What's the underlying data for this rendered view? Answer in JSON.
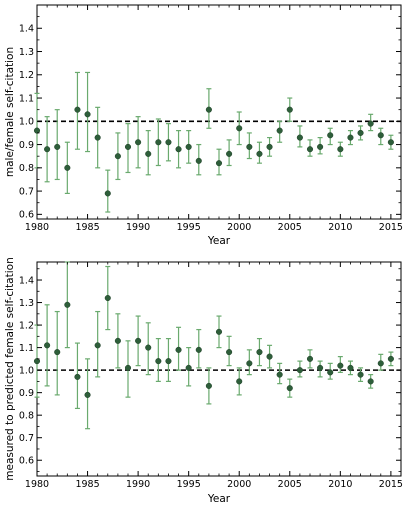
{
  "chart_data": [
    {
      "type": "scatter",
      "xlabel": "Year",
      "ylabel": "male/female self-citation",
      "xlim": [
        1980,
        2016
      ],
      "ylim": [
        0.58,
        1.5
      ],
      "xticks": [
        1980,
        1985,
        1990,
        1995,
        2000,
        2005,
        2010,
        2015
      ],
      "yticks": [
        0.6,
        0.7,
        0.8,
        0.9,
        1.0,
        1.1,
        1.2,
        1.3,
        1.4
      ],
      "xtick_labels": [
        "1980",
        "1985",
        "1990",
        "1995",
        "2000",
        "2005",
        "2010",
        "2015"
      ],
      "ytick_labels": [
        "0.6",
        "0.7",
        "0.8",
        "0.9",
        "1.0",
        "1.1",
        "1.2",
        "1.3",
        "1.4"
      ],
      "reference_line": 1.0,
      "grid": false,
      "point_color": "#2e5e3a",
      "errorbar_color": "#6aaa6e",
      "points": [
        {
          "x": 1980,
          "y": 0.96,
          "lo": 0.8,
          "hi": 1.12
        },
        {
          "x": 1981,
          "y": 0.88,
          "lo": 0.74,
          "hi": 1.02
        },
        {
          "x": 1982,
          "y": 0.89,
          "lo": 0.75,
          "hi": 1.05
        },
        {
          "x": 1983,
          "y": 0.8,
          "lo": 0.69,
          "hi": 0.91
        },
        {
          "x": 1984,
          "y": 1.05,
          "lo": 0.88,
          "hi": 1.21
        },
        {
          "x": 1985,
          "y": 1.03,
          "lo": 0.87,
          "hi": 1.21
        },
        {
          "x": 1986,
          "y": 0.93,
          "lo": 0.8,
          "hi": 1.06
        },
        {
          "x": 1987,
          "y": 0.69,
          "lo": 0.61,
          "hi": 0.79
        },
        {
          "x": 1988,
          "y": 0.85,
          "lo": 0.75,
          "hi": 0.95
        },
        {
          "x": 1989,
          "y": 0.89,
          "lo": 0.78,
          "hi": 0.99
        },
        {
          "x": 1990,
          "y": 0.91,
          "lo": 0.8,
          "hi": 1.02
        },
        {
          "x": 1991,
          "y": 0.86,
          "lo": 0.77,
          "hi": 0.96
        },
        {
          "x": 1992,
          "y": 0.91,
          "lo": 0.81,
          "hi": 1.01
        },
        {
          "x": 1993,
          "y": 0.91,
          "lo": 0.83,
          "hi": 0.99
        },
        {
          "x": 1994,
          "y": 0.88,
          "lo": 0.8,
          "hi": 0.96
        },
        {
          "x": 1995,
          "y": 0.89,
          "lo": 0.82,
          "hi": 0.96
        },
        {
          "x": 1996,
          "y": 0.83,
          "lo": 0.77,
          "hi": 0.9
        },
        {
          "x": 1997,
          "y": 1.05,
          "lo": 0.97,
          "hi": 1.14
        },
        {
          "x": 1998,
          "y": 0.82,
          "lo": 0.77,
          "hi": 0.88
        },
        {
          "x": 1999,
          "y": 0.86,
          "lo": 0.81,
          "hi": 0.92
        },
        {
          "x": 2000,
          "y": 0.97,
          "lo": 0.9,
          "hi": 1.04
        },
        {
          "x": 2001,
          "y": 0.89,
          "lo": 0.84,
          "hi": 0.95
        },
        {
          "x": 2002,
          "y": 0.86,
          "lo": 0.82,
          "hi": 0.91
        },
        {
          "x": 2003,
          "y": 0.89,
          "lo": 0.85,
          "hi": 0.93
        },
        {
          "x": 2004,
          "y": 0.96,
          "lo": 0.91,
          "hi": 1.0
        },
        {
          "x": 2005,
          "y": 1.05,
          "lo": 1.0,
          "hi": 1.1
        },
        {
          "x": 2006,
          "y": 0.93,
          "lo": 0.89,
          "hi": 0.98
        },
        {
          "x": 2007,
          "y": 0.88,
          "lo": 0.85,
          "hi": 0.92
        },
        {
          "x": 2008,
          "y": 0.89,
          "lo": 0.86,
          "hi": 0.93
        },
        {
          "x": 2009,
          "y": 0.94,
          "lo": 0.9,
          "hi": 0.97
        },
        {
          "x": 2010,
          "y": 0.88,
          "lo": 0.85,
          "hi": 0.91
        },
        {
          "x": 2011,
          "y": 0.93,
          "lo": 0.9,
          "hi": 0.96
        },
        {
          "x": 2012,
          "y": 0.95,
          "lo": 0.92,
          "hi": 0.98
        },
        {
          "x": 2013,
          "y": 0.99,
          "lo": 0.96,
          "hi": 1.03
        },
        {
          "x": 2014,
          "y": 0.94,
          "lo": 0.9,
          "hi": 0.97
        },
        {
          "x": 2015,
          "y": 0.91,
          "lo": 0.88,
          "hi": 0.94
        }
      ]
    },
    {
      "type": "scatter",
      "xlabel": "Year",
      "ylabel": "measured to predicted female self-citation",
      "xlim": [
        1980,
        2016
      ],
      "ylim": [
        0.53,
        1.48
      ],
      "xticks": [
        1980,
        1985,
        1990,
        1995,
        2000,
        2005,
        2010,
        2015
      ],
      "yticks": [
        0.6,
        0.7,
        0.8,
        0.9,
        1.0,
        1.1,
        1.2,
        1.3,
        1.4
      ],
      "xtick_labels": [
        "1980",
        "1985",
        "1990",
        "1995",
        "2000",
        "2005",
        "2010",
        "2015"
      ],
      "ytick_labels": [
        "0.6",
        "0.7",
        "0.8",
        "0.9",
        "1.0",
        "1.1",
        "1.2",
        "1.3",
        "1.4"
      ],
      "reference_line": 1.0,
      "grid": false,
      "point_color": "#2e5e3a",
      "errorbar_color": "#6aaa6e",
      "points": [
        {
          "x": 1980,
          "y": 1.04,
          "lo": 0.88,
          "hi": 1.2
        },
        {
          "x": 1981,
          "y": 1.11,
          "lo": 0.93,
          "hi": 1.29
        },
        {
          "x": 1982,
          "y": 1.08,
          "lo": 0.89,
          "hi": 1.26
        },
        {
          "x": 1983,
          "y": 1.29,
          "lo": 1.1,
          "hi": 1.48
        },
        {
          "x": 1984,
          "y": 0.97,
          "lo": 0.83,
          "hi": 1.12
        },
        {
          "x": 1985,
          "y": 0.89,
          "lo": 0.74,
          "hi": 1.05
        },
        {
          "x": 1986,
          "y": 1.11,
          "lo": 0.97,
          "hi": 1.26
        },
        {
          "x": 1987,
          "y": 1.32,
          "lo": 1.18,
          "hi": 1.46
        },
        {
          "x": 1988,
          "y": 1.13,
          "lo": 1.01,
          "hi": 1.25
        },
        {
          "x": 1989,
          "y": 1.01,
          "lo": 0.88,
          "hi": 1.13
        },
        {
          "x": 1990,
          "y": 1.13,
          "lo": 1.02,
          "hi": 1.24
        },
        {
          "x": 1991,
          "y": 1.1,
          "lo": 0.98,
          "hi": 1.21
        },
        {
          "x": 1992,
          "y": 1.04,
          "lo": 0.95,
          "hi": 1.14
        },
        {
          "x": 1993,
          "y": 1.04,
          "lo": 0.95,
          "hi": 1.14
        },
        {
          "x": 1994,
          "y": 1.09,
          "lo": 1.0,
          "hi": 1.19
        },
        {
          "x": 1995,
          "y": 1.01,
          "lo": 0.93,
          "hi": 1.1
        },
        {
          "x": 1996,
          "y": 1.09,
          "lo": 1.01,
          "hi": 1.18
        },
        {
          "x": 1997,
          "y": 0.93,
          "lo": 0.85,
          "hi": 1.01
        },
        {
          "x": 1998,
          "y": 1.17,
          "lo": 1.1,
          "hi": 1.24
        },
        {
          "x": 1999,
          "y": 1.08,
          "lo": 1.02,
          "hi": 1.15
        },
        {
          "x": 2000,
          "y": 0.95,
          "lo": 0.89,
          "hi": 1.01
        },
        {
          "x": 2001,
          "y": 1.03,
          "lo": 0.98,
          "hi": 1.09
        },
        {
          "x": 2002,
          "y": 1.08,
          "lo": 1.02,
          "hi": 1.14
        },
        {
          "x": 2003,
          "y": 1.06,
          "lo": 1.01,
          "hi": 1.11
        },
        {
          "x": 2004,
          "y": 0.98,
          "lo": 0.94,
          "hi": 1.03
        },
        {
          "x": 2005,
          "y": 0.92,
          "lo": 0.88,
          "hi": 0.96
        },
        {
          "x": 2006,
          "y": 1.0,
          "lo": 0.97,
          "hi": 1.04
        },
        {
          "x": 2007,
          "y": 1.05,
          "lo": 1.01,
          "hi": 1.09
        },
        {
          "x": 2008,
          "y": 1.01,
          "lo": 0.97,
          "hi": 1.04
        },
        {
          "x": 2009,
          "y": 0.99,
          "lo": 0.96,
          "hi": 1.03
        },
        {
          "x": 2010,
          "y": 1.02,
          "lo": 0.99,
          "hi": 1.06
        },
        {
          "x": 2011,
          "y": 1.01,
          "lo": 0.98,
          "hi": 1.04
        },
        {
          "x": 2012,
          "y": 0.98,
          "lo": 0.95,
          "hi": 1.01
        },
        {
          "x": 2013,
          "y": 0.95,
          "lo": 0.92,
          "hi": 0.98
        },
        {
          "x": 2014,
          "y": 1.03,
          "lo": 1.0,
          "hi": 1.07
        },
        {
          "x": 2015,
          "y": 1.05,
          "lo": 1.02,
          "hi": 1.08
        }
      ]
    }
  ]
}
